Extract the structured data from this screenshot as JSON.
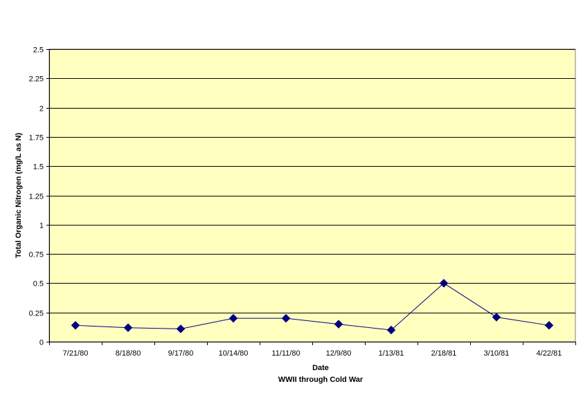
{
  "chart_data": {
    "type": "line",
    "title": "",
    "xlabel": "Date",
    "xlabel_sub": "WWII through Cold War",
    "ylabel": "Total Organic Nitrogen (mg/L as N)",
    "ylim": [
      0,
      2.5
    ],
    "yticks": [
      "0",
      "0.25",
      "0.5",
      "0.75",
      "1",
      "1.25",
      "1.5",
      "1.75",
      "2",
      "2.25",
      "2.5"
    ],
    "categories": [
      "7/21/80",
      "8/18/80",
      "9/17/80",
      "10/14/80",
      "11/11/80",
      "12/9/80",
      "1/13/81",
      "2/18/81",
      "3/10/81",
      "4/22/81"
    ],
    "series": [
      {
        "values": [
          0.14,
          0.12,
          0.11,
          0.2,
          0.2,
          0.15,
          0.1,
          0.5,
          0.21,
          0.14
        ]
      }
    ],
    "grid": true,
    "legend": "none",
    "colors": {
      "plot_background": "#FFFFC0",
      "marker": "#000080",
      "line": "#000080",
      "gridline": "#000000"
    }
  }
}
